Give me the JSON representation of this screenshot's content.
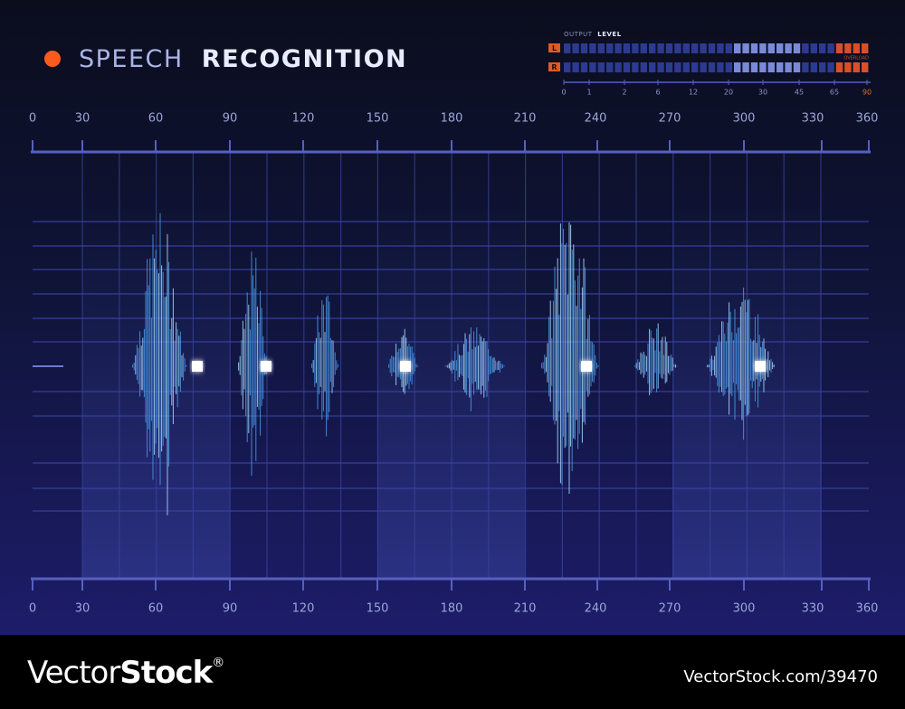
{
  "header": {
    "title_light": "SPEECH",
    "title_bold": "RECOGNITION"
  },
  "meter": {
    "label_light": "OUTPUT",
    "label_bold": "LEVEL",
    "channels": [
      "L",
      "R"
    ],
    "overload": "OVERLOAD",
    "scale": [
      "0",
      "1",
      "2",
      "6",
      "12",
      "20",
      "30",
      "45",
      "65",
      "90"
    ]
  },
  "ruler": {
    "top": [
      "0",
      "30",
      "60",
      "90",
      "120",
      "150",
      "180",
      "210",
      "240",
      "270",
      "300",
      "330",
      "360"
    ],
    "bottom": [
      "0",
      "30",
      "60",
      "90",
      "120",
      "150",
      "180",
      "210",
      "240",
      "270",
      "300",
      "330",
      "360"
    ]
  },
  "footer": {
    "brand_light": "Vector",
    "brand_bold": "Stock",
    "mark": "®",
    "url": "VectorStock.com/39470"
  }
}
